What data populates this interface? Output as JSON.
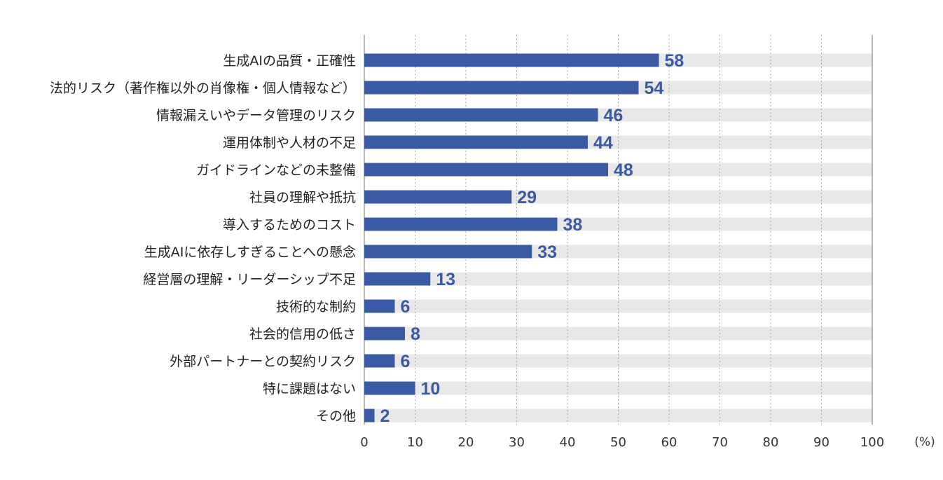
{
  "chart_data": {
    "type": "bar",
    "orientation": "horizontal",
    "categories": [
      "生成AIの品質・正確性",
      "法的リスク（著作権以外の肖像権・個人情報など）",
      "情報漏えいやデータ管理のリスク",
      "運用体制や人材の不足",
      "ガイドラインなどの未整備",
      "社員の理解や抵抗",
      "導入するためのコスト",
      "生成AIに依存しすぎることへの懸念",
      "経営層の理解・リーダーシップ不足",
      "技術的な制約",
      "社会的信用の低さ",
      "外部パートナーとの契約リスク",
      "特に課題はない",
      "その他"
    ],
    "values": [
      58,
      54,
      46,
      44,
      48,
      29,
      38,
      33,
      13,
      6,
      8,
      6,
      10,
      2
    ],
    "xlim": [
      0,
      100
    ],
    "x_ticks": [
      0,
      10,
      20,
      30,
      40,
      50,
      60,
      70,
      80,
      90,
      100
    ],
    "x_ticks_text": [
      "0",
      "10",
      "20",
      "30",
      "40",
      "50",
      "60",
      "70",
      "80",
      "90",
      "100"
    ],
    "unit_label": "(%)",
    "grid": "vertical-dotted",
    "colors": {
      "bar": "#3a5ba3",
      "track": "#e8e8e8",
      "value_text": "#3a5ba3",
      "grid": "#aaaaaa",
      "axis": "#888888"
    }
  }
}
